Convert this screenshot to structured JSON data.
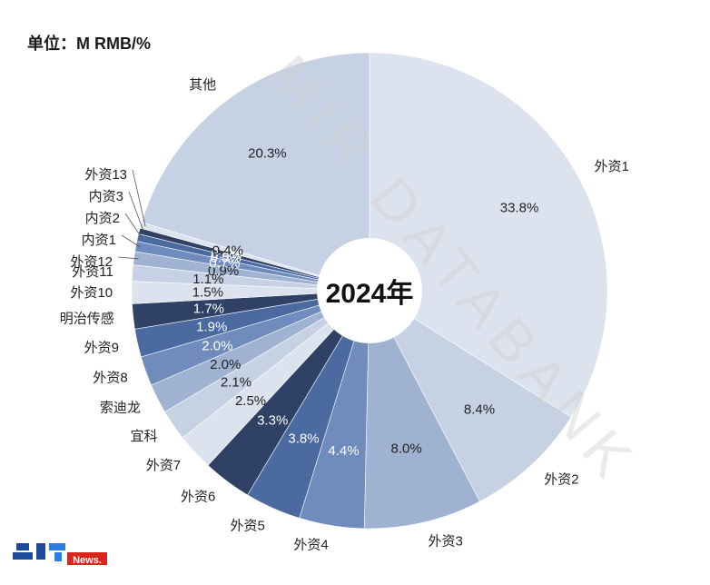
{
  "header": {
    "unit_label": "单位：M RMB/%"
  },
  "watermark": "MIR DATABANK",
  "center_label": "2024年",
  "logo": {
    "text": "News."
  },
  "colors": {
    "dark": "#2f4164",
    "mid": "#4a6aa0",
    "light": "#d9e1ef"
  },
  "chart_data": {
    "type": "pie",
    "subtype": "donut",
    "center_text": "2024年",
    "unit": "单位：M RMB/%",
    "slices": [
      {
        "name": "外资1",
        "value": 33.8,
        "label": "33.8%",
        "color": "#dce3ef"
      },
      {
        "name": "外资2",
        "value": 8.4,
        "label": "8.4%",
        "color": "#c6d1e4"
      },
      {
        "name": "外资3",
        "value": 8.0,
        "label": "8.0%",
        "color": "#9fb2d2"
      },
      {
        "name": "外资4",
        "value": 4.4,
        "label": "4.4%",
        "color": "#6f8cbd"
      },
      {
        "name": "外资5",
        "value": 3.8,
        "label": "3.8%",
        "color": "#4a6aa0"
      },
      {
        "name": "外资6",
        "value": 3.3,
        "label": "3.3%",
        "color": "#2f4164"
      },
      {
        "name": "外资7",
        "value": 2.5,
        "label": "2.5%",
        "color": "#dce3ef"
      },
      {
        "name": "宜科",
        "value": 2.1,
        "label": "2.1%",
        "color": "#c6d1e4"
      },
      {
        "name": "索迪龙",
        "value": 2.0,
        "label": "2.0%",
        "color": "#9fb2d2"
      },
      {
        "name": "外资8",
        "value": 2.0,
        "label": "2.0%",
        "color": "#6f8cbd"
      },
      {
        "name": "外资9",
        "value": 1.9,
        "label": "1.9%",
        "color": "#4a6aa0"
      },
      {
        "name": "明治传感",
        "value": 1.7,
        "label": "1.7%",
        "color": "#2f4164"
      },
      {
        "name": "外资10",
        "value": 1.5,
        "label": "1.5%",
        "color": "#dce3ef"
      },
      {
        "name": "外资11",
        "value": 1.1,
        "label": "1.1%",
        "color": "#c6d1e4"
      },
      {
        "name": "外资12",
        "value": 0.9,
        "label": "0.9%",
        "color": "#9fb2d2"
      },
      {
        "name": "内资1",
        "value": 0.7,
        "label": "0.7%",
        "color": "#6f8cbd"
      },
      {
        "name": "内资2",
        "value": 0.5,
        "label": "0.5%",
        "color": "#4a6aa0"
      },
      {
        "name": "内资3",
        "value": 0.4,
        "label": "0.4%",
        "color": "#2f4164"
      },
      {
        "name": "外资13",
        "value": 0.4,
        "label": "0.4%",
        "color": "#dce3ef"
      },
      {
        "name": "其他",
        "value": 20.3,
        "label": "20.3%",
        "color": "#c6d1e4"
      }
    ]
  }
}
